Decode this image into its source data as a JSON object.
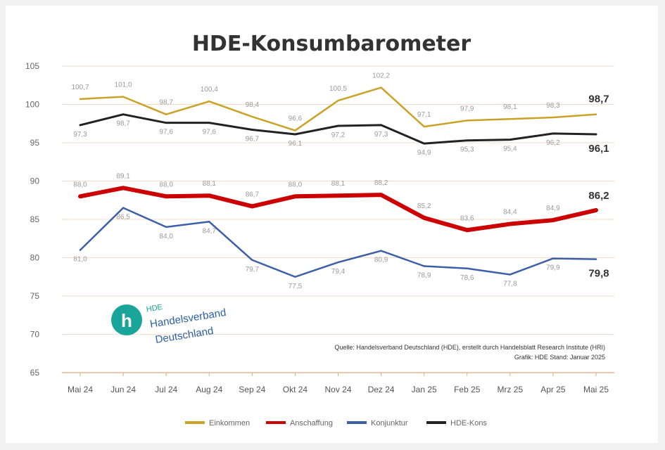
{
  "chart_data": {
    "type": "line",
    "title": "HDE-Konsumbarometer",
    "xlabel": "",
    "ylabel": "",
    "categories": [
      "Mai 24",
      "Jun 24",
      "Jul 24",
      "Aug 24",
      "Sep 24",
      "Okt 24",
      "Nov 24",
      "Dez 24",
      "Jan 25",
      "Feb 25",
      "Mrz 25",
      "Apr 25",
      "Mai 25"
    ],
    "ylim": [
      65,
      105
    ],
    "yticks": [
      "65",
      "70",
      "75",
      "80",
      "85",
      "90",
      "95",
      "100",
      "105"
    ],
    "grid": true,
    "legend_position": "bottom",
    "series": [
      {
        "name": "Einkommen",
        "color": "#c9a227",
        "width": 2.5,
        "values": [
          100.7,
          101.0,
          98.7,
          100.4,
          98.4,
          96.6,
          100.5,
          102.2,
          97.1,
          97.9,
          98.1,
          98.3,
          98.7
        ],
        "end_label": "98,7",
        "labels": [
          "100,7",
          "101,0",
          "98,7",
          "100,4",
          "98,4",
          "96,6",
          "100,5",
          "102,2",
          "97,1",
          "97,9",
          "98,1",
          "98,3",
          ""
        ]
      },
      {
        "name": "Anschaffung",
        "color": "#cc0000",
        "width": 6,
        "values": [
          88.0,
          89.1,
          88.0,
          88.1,
          86.7,
          88.0,
          88.1,
          88.2,
          85.2,
          83.6,
          84.4,
          84.9,
          86.2
        ],
        "end_label": "86,2",
        "labels": [
          "88,0",
          "89,1",
          "88,0",
          "88,1",
          "86,7",
          "88,0",
          "88,1",
          "88,2",
          "85,2",
          "83,6",
          "84,4",
          "84,9",
          ""
        ]
      },
      {
        "name": "Konjunktur",
        "color": "#3c5fa8",
        "width": 2.5,
        "values": [
          81.0,
          86.5,
          84.0,
          84.7,
          79.7,
          77.5,
          79.4,
          80.9,
          78.9,
          78.6,
          77.8,
          79.9,
          79.8
        ],
        "end_label": "79,8",
        "labels": [
          "81,0",
          "86,5",
          "84,0",
          "84,7",
          "79,7",
          "77,5",
          "79,4",
          "80,9",
          "78,9",
          "78,6",
          "77,8",
          "79,9",
          ""
        ]
      },
      {
        "name": "HDE-Kons",
        "color": "#222222",
        "width": 3,
        "values": [
          97.3,
          98.7,
          97.6,
          97.6,
          96.7,
          96.1,
          97.2,
          97.3,
          94.9,
          95.3,
          95.4,
          96.2,
          96.1
        ],
        "end_label": "96,1",
        "labels": [
          "97,3",
          "98,7",
          "97,6",
          "97,6",
          "96,7",
          "96,1",
          "97,2",
          "97,3",
          "94,9",
          "95,3",
          "95,4",
          "96,2",
          ""
        ]
      }
    ]
  },
  "source": {
    "line1": "Quelle: Handelsverband Deutschland (HDE), erstellt durch Handelsblatt Research Institute (HRI)",
    "line2": "Grafik: HDE Stand: Januar 2025"
  },
  "logo": {
    "badge": "h",
    "line1": "HDE",
    "line2": "Handelsverband",
    "line3": "Deutschland",
    "badge_color": "#1aa59a"
  }
}
